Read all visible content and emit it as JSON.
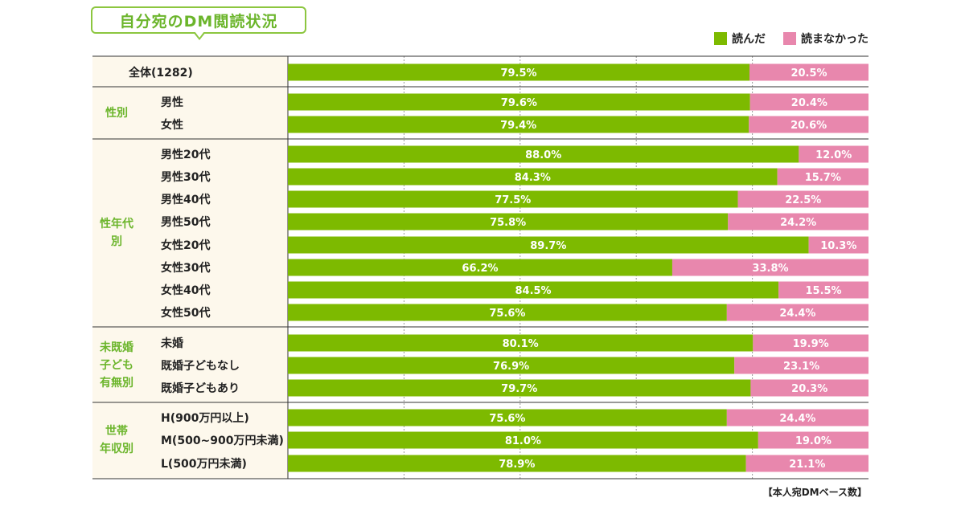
{
  "title": "自分宛のDM閲読状況",
  "legend": [
    {
      "label": "読んだ",
      "color": "#7dba00"
    },
    {
      "label": "読まなかった",
      "color": "#e887ad"
    }
  ],
  "source_note": "【本人宛DMベース数】",
  "chart_data": {
    "type": "bar",
    "stacked": true,
    "orientation": "horizontal",
    "percent": true,
    "xlim": [
      0,
      100
    ],
    "grid": true,
    "series": [
      {
        "name": "読んだ",
        "color": "#7dba00"
      },
      {
        "name": "読まなかった",
        "color": "#e887ad"
      }
    ],
    "groups": [
      {
        "label": "",
        "rows": [
          {
            "label": "全体(1282)",
            "values": [
              "79.5",
              "20.5"
            ]
          }
        ]
      },
      {
        "label": "性別",
        "rows": [
          {
            "label": "男性",
            "values": [
              "79.6",
              "20.4"
            ]
          },
          {
            "label": "女性",
            "values": [
              "79.4",
              "20.6"
            ]
          }
        ]
      },
      {
        "label": "性年代\n別",
        "rows": [
          {
            "label": "男性20代",
            "values": [
              "88.0",
              "12.0"
            ]
          },
          {
            "label": "男性30代",
            "values": [
              "84.3",
              "15.7"
            ]
          },
          {
            "label": "男性40代",
            "values": [
              "77.5",
              "22.5"
            ]
          },
          {
            "label": "男性50代",
            "values": [
              "75.8",
              "24.2"
            ]
          },
          {
            "label": "女性20代",
            "values": [
              "89.7",
              "10.3"
            ]
          },
          {
            "label": "女性30代",
            "values": [
              "66.2",
              "33.8"
            ]
          },
          {
            "label": "女性40代",
            "values": [
              "84.5",
              "15.5"
            ]
          },
          {
            "label": "女性50代",
            "values": [
              "75.6",
              "24.4"
            ]
          }
        ]
      },
      {
        "label": "未既婚\n子ども\n有無別",
        "rows": [
          {
            "label": "未婚",
            "values": [
              "80.1",
              "19.9"
            ]
          },
          {
            "label": "既婚子どもなし",
            "values": [
              "76.9",
              "23.1"
            ]
          },
          {
            "label": "既婚子どもあり",
            "values": [
              "79.7",
              "20.3"
            ]
          }
        ]
      },
      {
        "label": "世帯\n年収別",
        "rows": [
          {
            "label": "H(900万円以上)",
            "values": [
              "75.6",
              "24.4"
            ]
          },
          {
            "label": "M(500~900万円未満)",
            "values": [
              "81.0",
              "19.0"
            ]
          },
          {
            "label": "L(500万円未満)",
            "values": [
              "78.9",
              "21.1"
            ]
          }
        ]
      }
    ]
  }
}
